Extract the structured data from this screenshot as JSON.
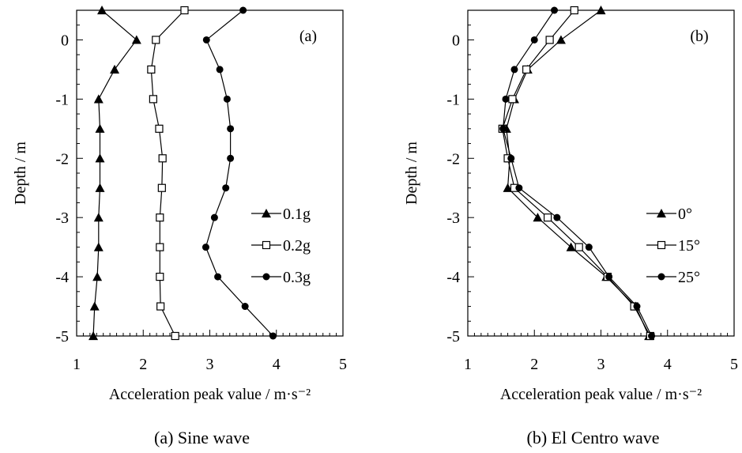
{
  "panels": [
    {
      "caption": "(a) Sine wave",
      "chart_data": {
        "type": "line",
        "panel_label": "(a)",
        "xlabel": "Acceleration peak value / m·s⁻²",
        "ylabel": "Depth / m",
        "xlim": [
          1,
          5
        ],
        "ylim": [
          -5,
          0.5
        ],
        "xticks": [
          "1",
          "2",
          "3",
          "4",
          "5"
        ],
        "yticks": [
          "0",
          "-1",
          "-2",
          "-3",
          "-4",
          "-5"
        ],
        "legend_position": "right-middle",
        "depth": [
          0.5,
          0,
          -0.5,
          -1,
          -1.5,
          -2,
          -2.5,
          -3,
          -3.5,
          -4,
          -4.5,
          -5
        ],
        "series": [
          {
            "name": "0.1g",
            "marker": "triangle",
            "values": [
              1.38,
              1.9,
              1.57,
              1.33,
              1.35,
              1.35,
              1.35,
              1.33,
              1.33,
              1.31,
              1.27,
              1.25
            ]
          },
          {
            "name": "0.2g",
            "marker": "square",
            "values": [
              2.62,
              2.19,
              2.12,
              2.15,
              2.24,
              2.29,
              2.28,
              2.25,
              2.25,
              2.25,
              2.26,
              2.48
            ]
          },
          {
            "name": "0.3g",
            "marker": "circle",
            "values": [
              3.5,
              2.95,
              3.15,
              3.26,
              3.31,
              3.31,
              3.24,
              3.07,
              2.94,
              3.12,
              3.53,
              3.95
            ]
          }
        ]
      }
    },
    {
      "caption": "(b) El Centro wave",
      "chart_data": {
        "type": "line",
        "panel_label": "(b)",
        "xlabel": "Acceleration peak value / m·s⁻²",
        "ylabel": "Depth / m",
        "xlim": [
          1,
          5
        ],
        "ylim": [
          -5,
          0.5
        ],
        "xticks": [
          "1",
          "2",
          "3",
          "4",
          "5"
        ],
        "yticks": [
          "0",
          "-1",
          "-2",
          "-3",
          "-4",
          "-5"
        ],
        "legend_position": "right-middle",
        "depth": [
          0.5,
          0,
          -0.5,
          -1,
          -1.5,
          -2,
          -2.5,
          -3,
          -3.5,
          -4,
          -4.5,
          -5
        ],
        "series": [
          {
            "name": "0°",
            "marker": "triangle",
            "values": [
              3.0,
              2.4,
              1.9,
              1.7,
              1.58,
              1.63,
              1.6,
              2.05,
              2.55,
              3.08,
              3.52,
              3.72
            ]
          },
          {
            "name": "15°",
            "marker": "square",
            "values": [
              2.6,
              2.23,
              1.88,
              1.67,
              1.52,
              1.6,
              1.7,
              2.2,
              2.67,
              3.1,
              3.5,
              3.74
            ]
          },
          {
            "name": "25°",
            "marker": "circle",
            "values": [
              2.3,
              2.0,
              1.7,
              1.57,
              1.53,
              1.65,
              1.77,
              2.34,
              2.82,
              3.12,
              3.54,
              3.76
            ]
          }
        ]
      }
    }
  ]
}
